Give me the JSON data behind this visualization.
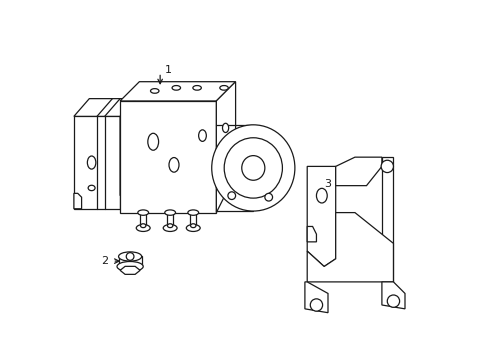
{
  "background_color": "#ffffff",
  "line_color": "#1a1a1a",
  "line_width": 0.9,
  "fig_width": 4.89,
  "fig_height": 3.6,
  "dpi": 100,
  "label1": "1",
  "label2": "2",
  "label3": "3"
}
